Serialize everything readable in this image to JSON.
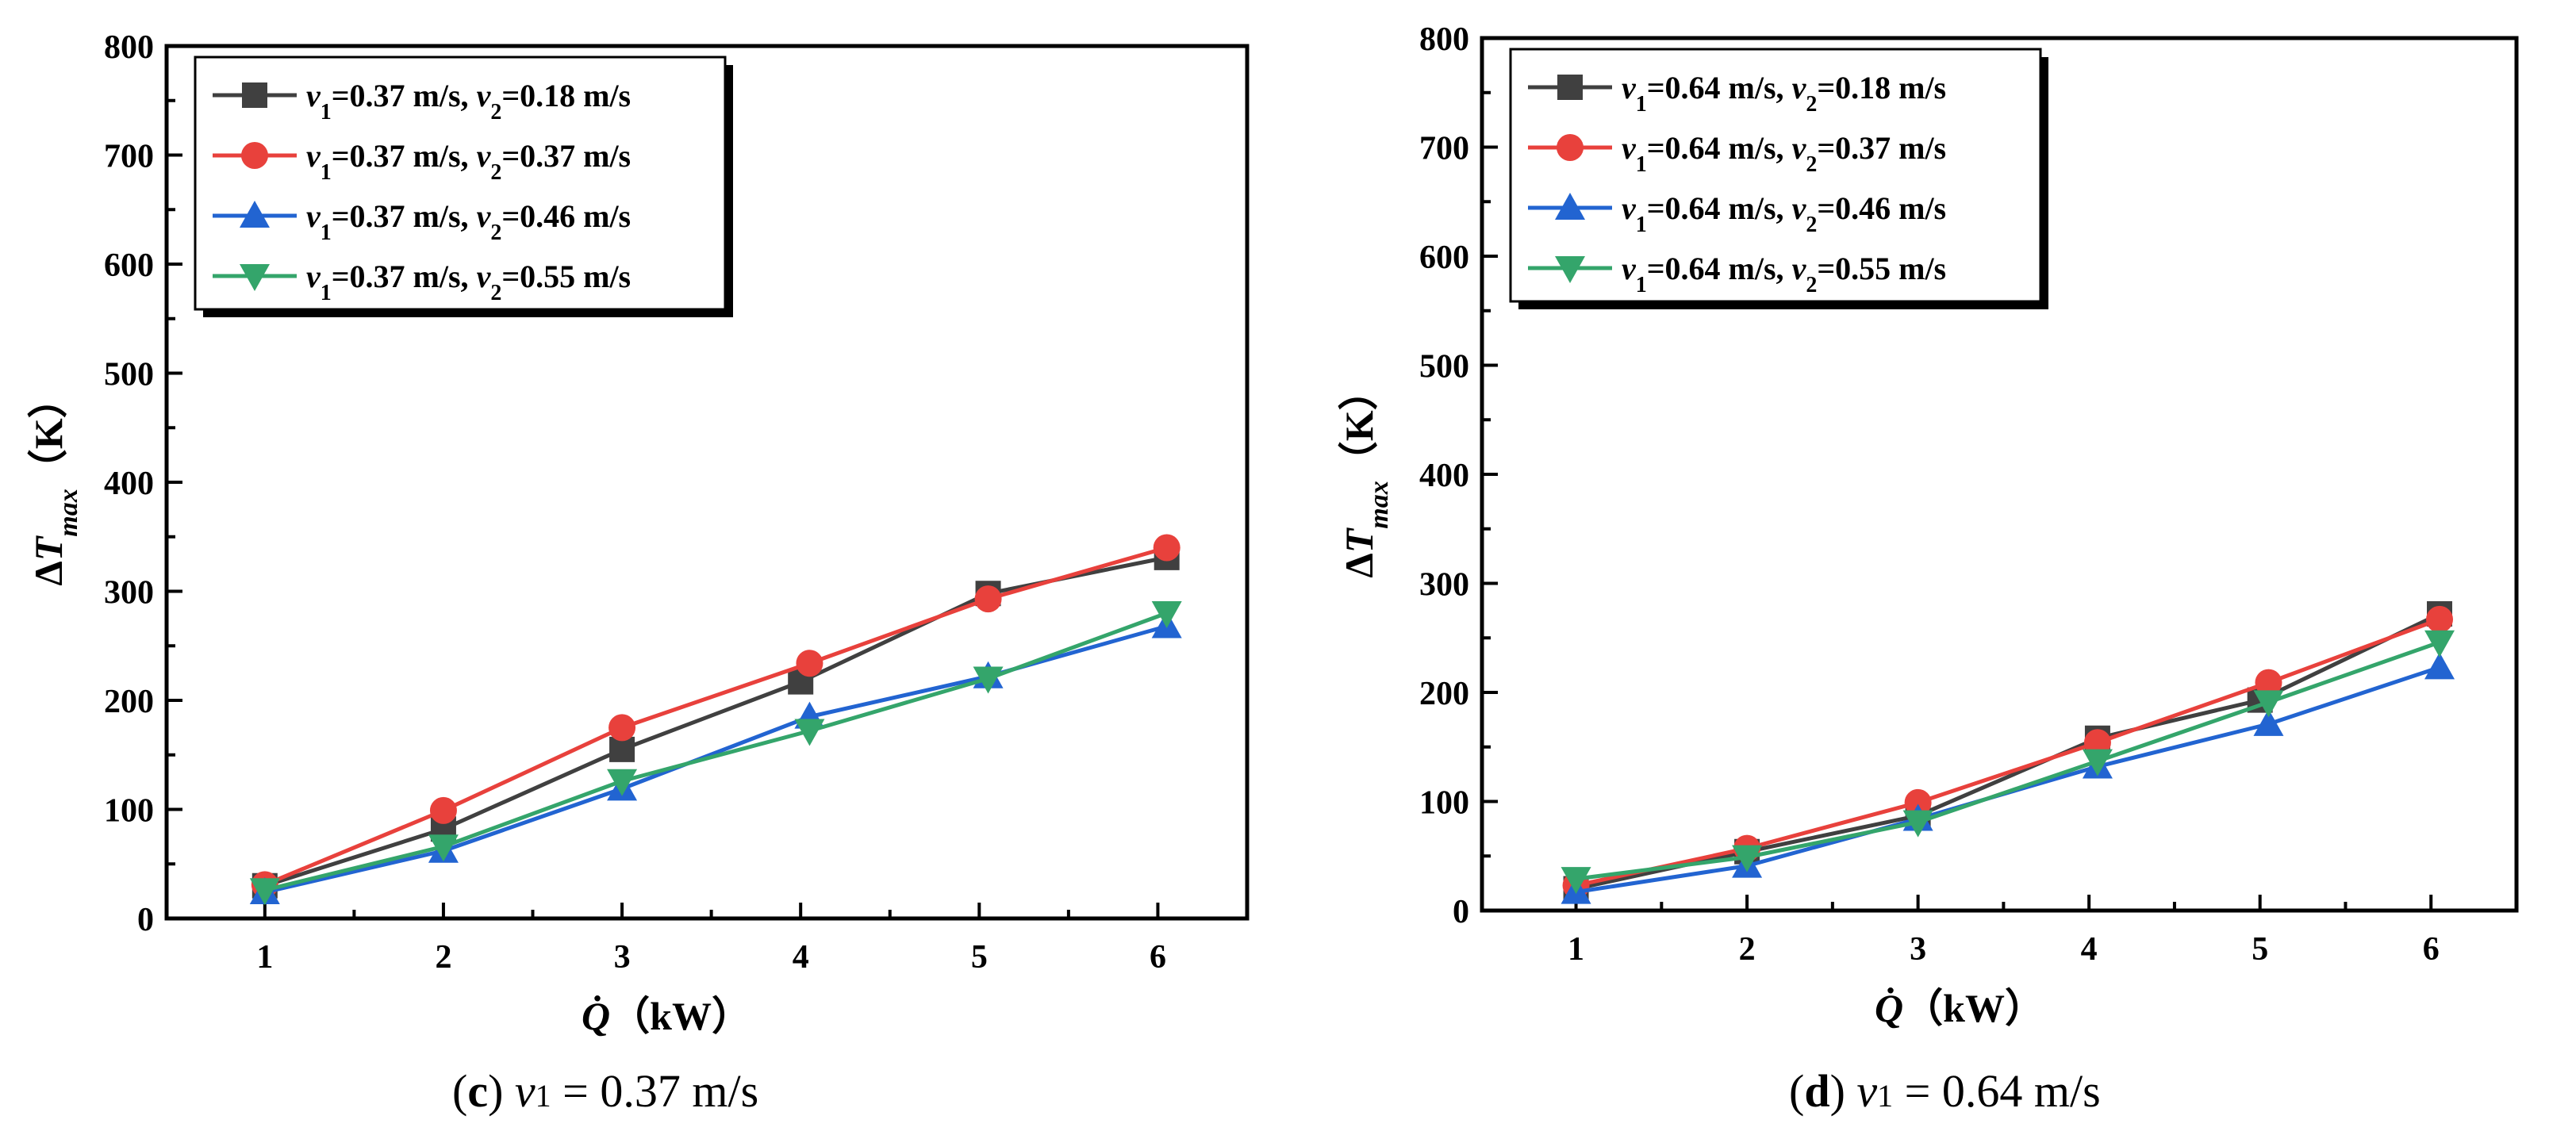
{
  "chart_data": [
    {
      "type": "line",
      "caption": {
        "label": "(c)",
        "text": "v1 = 0.37 m/s"
      },
      "xlabel": "Q̇（kW）",
      "ylabel": "ΔTmax（K）",
      "x": [
        1,
        2,
        3,
        4,
        5,
        6
      ],
      "xlim": [
        0.45,
        6.5
      ],
      "ylim": [
        0,
        800
      ],
      "xticks": [
        "1",
        "2",
        "3",
        "4",
        "5",
        "6"
      ],
      "yticks": [
        "0",
        "100",
        "200",
        "300",
        "400",
        "500",
        "600",
        "700",
        "800"
      ],
      "legend_position": "top-left",
      "series": [
        {
          "name": "v1=0.37 m/s, v2=0.18 m/s",
          "color": "#404040",
          "marker": "square",
          "x": [
            1,
            2,
            3,
            4,
            5.05,
            6.05
          ],
          "values": [
            30,
            82,
            155,
            217,
            298,
            331
          ]
        },
        {
          "name": "v1=0.37 m/s, v2=0.37 m/s",
          "color": "#e8413c",
          "marker": "circle",
          "x": [
            1,
            2,
            3,
            4.05,
            5.05,
            6.05
          ],
          "values": [
            31,
            99,
            175,
            234,
            293,
            340
          ]
        },
        {
          "name": "v1=0.37 m/s, v2=0.46 m/s",
          "color": "#2264d1",
          "marker": "triangle-up",
          "x": [
            1,
            2,
            3,
            4.05,
            5.05,
            6.05
          ],
          "values": [
            24,
            62,
            119,
            185,
            222,
            268
          ]
        },
        {
          "name": "v1=0.37 m/s, v2=0.55 m/s",
          "color": "#34a56b",
          "marker": "triangle-down",
          "x": [
            1,
            2,
            3,
            4.05,
            5.05,
            6.05
          ],
          "values": [
            26,
            66,
            126,
            172,
            220,
            280
          ]
        }
      ]
    },
    {
      "type": "line",
      "caption": {
        "label": "(d)",
        "text": "v1 = 0.64 m/s"
      },
      "xlabel": "Q̇（kW）",
      "ylabel": "ΔTmax（K）",
      "x": [
        1,
        2,
        3,
        4,
        5,
        6
      ],
      "xlim": [
        0.45,
        6.5
      ],
      "ylim": [
        0,
        800
      ],
      "xticks": [
        "1",
        "2",
        "3",
        "4",
        "5",
        "6"
      ],
      "yticks": [
        "0",
        "100",
        "200",
        "300",
        "400",
        "500",
        "600",
        "700",
        "800"
      ],
      "legend_position": "top-left",
      "series": [
        {
          "name": "v1=0.64 m/s, v2=0.18 m/s",
          "color": "#404040",
          "marker": "square",
          "x": [
            1,
            2,
            3,
            4.05,
            5,
            6.05
          ],
          "values": [
            20,
            54,
            87,
            158,
            193,
            272
          ]
        },
        {
          "name": "v1=0.64 m/s, v2=0.37 m/s",
          "color": "#e8413c",
          "marker": "circle",
          "x": [
            1,
            2,
            3,
            4.05,
            5.05,
            6.05
          ],
          "values": [
            23,
            57,
            99,
            154,
            209,
            267
          ]
        },
        {
          "name": "v1=0.64 m/s, v2=0.46 m/s",
          "color": "#2264d1",
          "marker": "triangle-up",
          "x": [
            1,
            2,
            3,
            4.05,
            5.05,
            6.05
          ],
          "values": [
            17,
            41,
            84,
            132,
            171,
            223
          ]
        },
        {
          "name": "v1=0.64 m/s, v2=0.55 m/s",
          "color": "#34a56b",
          "marker": "triangle-down",
          "x": [
            1,
            2,
            3,
            4.05,
            5.05,
            6.05
          ],
          "values": [
            29,
            49,
            81,
            137,
            191,
            246
          ]
        }
      ]
    }
  ]
}
